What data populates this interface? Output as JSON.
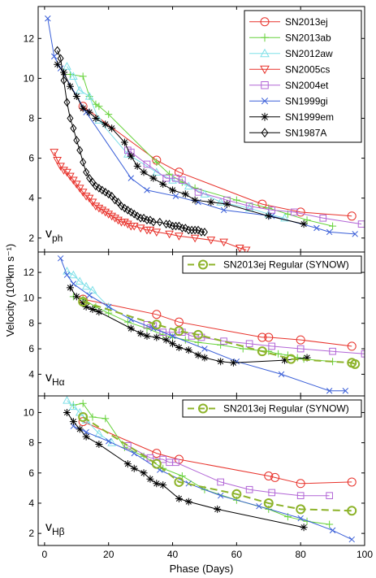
{
  "chart_data": {
    "type": "line",
    "xlabel": "Phase (Days)",
    "ylabel": "Velocity (10³km s⁻¹)",
    "xlim": [
      -2,
      100
    ],
    "xticks": [
      0,
      20,
      40,
      60,
      80,
      100
    ],
    "styles": {
      "SN2013ej": {
        "color": "#e8322b",
        "marker": "circle"
      },
      "SN2013ab": {
        "color": "#66d23a",
        "marker": "plus"
      },
      "SN2012aw": {
        "color": "#7fe0e8",
        "marker": "triangle-up"
      },
      "SN2005cs": {
        "color": "#e8322b",
        "marker": "triangle-down"
      },
      "SN2004et": {
        "color": "#b266d6",
        "marker": "square"
      },
      "SN1999gi": {
        "color": "#3a5fd8",
        "marker": "x"
      },
      "SN1999em": {
        "color": "#000000",
        "marker": "star"
      },
      "SN1987A": {
        "color": "#000000",
        "marker": "diamond"
      },
      "SN2013ej Regular (SYNOW)": {
        "color": "#8db32a",
        "marker": "circle",
        "dashed": true
      }
    },
    "panels": [
      {
        "label_main": "v",
        "label_sub": "ph",
        "ylim": [
          1.3,
          13.6
        ],
        "yticks": [
          2,
          4,
          6,
          8,
          10,
          12
        ],
        "legend_position": "top-right",
        "legend": [
          "SN2013ej",
          "SN2013ab",
          "SN2012aw",
          "SN2005cs",
          "SN2004et",
          "SN1999gi",
          "SN1999em",
          "SN1987A"
        ],
        "series": [
          {
            "name": "SN2013ej",
            "x": [
              12,
              35,
              42,
              68,
              80,
              96
            ],
            "y": [
              8.6,
              5.9,
              5.3,
              3.7,
              3.3,
              3.1
            ]
          },
          {
            "name": "SN2013ab",
            "x": [
              8,
              12,
              14,
              16,
              17,
              20,
              35,
              39,
              43,
              47,
              60,
              70,
              76,
              82,
              90
            ],
            "y": [
              10.2,
              10.1,
              9.1,
              8.7,
              8.6,
              8.2,
              5.8,
              5.2,
              4.8,
              4.5,
              3.9,
              3.5,
              3.2,
              2.9,
              2.6
            ]
          },
          {
            "name": "SN2012aw",
            "x": [
              7,
              9,
              11,
              14,
              17,
              26,
              35,
              40,
              45,
              50,
              55,
              64,
              70,
              75
            ],
            "y": [
              10.6,
              10.1,
              9.4,
              9.1,
              7.9,
              6.2,
              5.3,
              4.9,
              4.6,
              4.2,
              3.8,
              3.5,
              3.2,
              3.0
            ]
          },
          {
            "name": "SN2005cs",
            "x": [
              3,
              4,
              5,
              6,
              7,
              8,
              9,
              10,
              11,
              12,
              13,
              14,
              15,
              16,
              17,
              18,
              19,
              20,
              21,
              22,
              23,
              24,
              25,
              26,
              27,
              28,
              30,
              32,
              33,
              35,
              39,
              42,
              47,
              52,
              56,
              61,
              63
            ],
            "y": [
              6.3,
              5.9,
              5.6,
              5.4,
              5.3,
              5.1,
              4.9,
              4.7,
              4.5,
              4.3,
              4.1,
              4.0,
              3.8,
              3.6,
              3.5,
              3.4,
              3.3,
              3.2,
              3.1,
              3.0,
              2.9,
              2.8,
              2.8,
              2.7,
              2.6,
              2.6,
              2.5,
              2.4,
              2.4,
              2.3,
              2.2,
              2.1,
              2.0,
              1.9,
              1.8,
              1.5,
              1.4
            ]
          },
          {
            "name": "SN2004et",
            "x": [
              26,
              27,
              32,
              38,
              41,
              43,
              48,
              57,
              64,
              71,
              78,
              87,
              99
            ],
            "y": [
              6.4,
              6.3,
              5.7,
              5.0,
              5.0,
              4.9,
              4.3,
              3.9,
              3.6,
              3.4,
              3.3,
              3.0,
              2.7
            ]
          },
          {
            "name": "SN1999gi",
            "x": [
              1,
              3,
              5,
              13,
              27,
              32,
              41,
              48,
              56,
              71,
              85,
              89,
              97
            ],
            "y": [
              13.0,
              11.1,
              10.5,
              8.3,
              5.0,
              4.4,
              4.1,
              3.8,
              3.4,
              3.1,
              2.5,
              2.3,
              2.2
            ]
          },
          {
            "name": "SN1999em",
            "x": [
              4,
              6,
              8,
              10,
              12,
              14,
              16,
              19,
              21,
              25,
              27,
              29,
              31,
              34,
              37,
              40,
              44,
              47,
              52,
              57,
              70,
              81
            ],
            "y": [
              10.7,
              10.3,
              9.6,
              9.1,
              8.5,
              8.3,
              8.0,
              7.7,
              7.5,
              6.8,
              6.1,
              5.6,
              5.3,
              5.0,
              4.7,
              4.4,
              4.2,
              3.9,
              3.8,
              3.7,
              3.1,
              2.7
            ]
          },
          {
            "name": "SN1987A",
            "x": [
              4,
              5,
              6,
              7,
              8,
              9,
              10,
              11,
              12,
              13,
              14,
              15,
              16,
              17,
              18,
              19,
              20,
              21,
              22,
              23,
              24,
              25,
              26,
              27,
              28,
              29,
              30,
              31,
              32,
              33,
              34,
              36,
              38,
              39,
              40,
              41,
              42,
              43,
              44,
              45,
              46,
              47,
              48,
              49,
              50
            ],
            "y": [
              11.4,
              11.0,
              9.9,
              8.8,
              8.0,
              7.5,
              6.9,
              6.4,
              5.8,
              5.3,
              5.0,
              4.8,
              4.6,
              4.5,
              4.4,
              4.3,
              4.2,
              4.1,
              3.9,
              3.8,
              3.6,
              3.5,
              3.4,
              3.3,
              3.2,
              3.1,
              3.0,
              3.0,
              2.9,
              2.9,
              2.8,
              2.8,
              2.7,
              2.7,
              2.6,
              2.6,
              2.6,
              2.5,
              2.5,
              2.4,
              2.4,
              2.4,
              2.4,
              2.3,
              2.3
            ]
          }
        ]
      },
      {
        "label_main": "v",
        "label_sub": "Hα",
        "ylim": [
          2.3,
          13.6
        ],
        "yticks": [
          4,
          6,
          8,
          10,
          12
        ],
        "legend_position": "top-right",
        "legend": [
          "SN2013ej Regular (SYNOW)"
        ],
        "series": [
          {
            "name": "SN2013ej",
            "x": [
              12,
              35,
              42,
              68,
              70,
              80,
              96
            ],
            "y": [
              9.9,
              8.7,
              8.1,
              6.9,
              6.9,
              6.7,
              6.2
            ]
          },
          {
            "name": "SN2013ab",
            "x": [
              9,
              12,
              16,
              20,
              26,
              32,
              37,
              40,
              44,
              48,
              55,
              62,
              70,
              73,
              76,
              79,
              81,
              90
            ],
            "y": [
              10.1,
              9.9,
              9.3,
              8.8,
              8.1,
              7.6,
              7.1,
              6.9,
              6.7,
              6.5,
              6.3,
              6.0,
              5.8,
              5.6,
              5.5,
              5.3,
              5.2,
              5.0
            ]
          },
          {
            "name": "SN2012aw",
            "x": [
              7,
              9,
              11,
              13,
              15,
              20
            ],
            "y": [
              12.1,
              11.8,
              11.3,
              10.9,
              10.6,
              9.3
            ]
          },
          {
            "name": "SN2004et",
            "x": [
              32,
              34,
              37,
              40,
              43,
              46,
              49,
              56,
              64,
              71,
              80,
              90,
              100
            ],
            "y": [
              7.9,
              7.8,
              7.3,
              7.3,
              7.3,
              7.0,
              6.9,
              6.6,
              6.4,
              6.2,
              6.0,
              5.8,
              5.6
            ]
          },
          {
            "name": "SN1999gi",
            "x": [
              5,
              7,
              9,
              14,
              20,
              27,
              34,
              40,
              50,
              60,
              74,
              89,
              94
            ],
            "y": [
              13.1,
              11.8,
              11.1,
              10.2,
              9.3,
              8.3,
              7.6,
              7.0,
              6.0,
              5.0,
              4.0,
              2.7,
              2.7
            ]
          },
          {
            "name": "SN1999em",
            "x": [
              8,
              10,
              12,
              13,
              15,
              17,
              27,
              30,
              32,
              35,
              38,
              40,
              42,
              45,
              48,
              50,
              55,
              59,
              75,
              82
            ],
            "y": [
              10.8,
              10.1,
              9.6,
              9.3,
              9.1,
              8.9,
              7.6,
              7.2,
              7.0,
              6.9,
              6.7,
              6.4,
              6.1,
              5.9,
              5.5,
              5.3,
              5.0,
              4.9,
              5.1,
              5.3
            ]
          },
          {
            "name": "SN2013ej Regular (SYNOW)",
            "x": [
              12,
              35,
              42,
              48,
              68,
              77,
              96,
              97
            ],
            "y": [
              9.7,
              7.9,
              7.4,
              7.1,
              5.8,
              5.2,
              4.9,
              4.8
            ]
          }
        ]
      },
      {
        "label_main": "v",
        "label_sub": "Hβ",
        "ylim": [
          1.2,
          11.1
        ],
        "yticks": [
          2,
          4,
          6,
          8,
          10
        ],
        "legend_position": "top-right",
        "legend": [
          "SN2013ej Regular (SYNOW)"
        ],
        "series": [
          {
            "name": "SN2013ej",
            "x": [
              12,
              35,
              42,
              70,
              72,
              80,
              96
            ],
            "y": [
              9.4,
              7.3,
              6.9,
              5.8,
              5.7,
              5.3,
              5.4
            ]
          },
          {
            "name": "SN2013ab",
            "x": [
              9,
              12,
              15,
              19,
              25,
              31,
              37,
              43,
              50,
              60,
              70,
              76,
              82,
              89
            ],
            "y": [
              10.5,
              10.6,
              9.7,
              9.6,
              7.7,
              7.1,
              6.3,
              5.8,
              4.9,
              4.2,
              3.6,
              3.1,
              2.8,
              2.6
            ]
          },
          {
            "name": "SN2012aw",
            "x": [
              7,
              9,
              11,
              13,
              17,
              21
            ],
            "y": [
              10.8,
              10.4,
              10.0,
              9.5,
              8.6,
              8.0
            ]
          },
          {
            "name": "SN2004et",
            "x": [
              26,
              33,
              37,
              39,
              41,
              55,
              64,
              71,
              80,
              89
            ],
            "y": [
              7.8,
              7.0,
              6.9,
              6.7,
              6.7,
              5.4,
              4.9,
              4.7,
              4.5,
              4.5
            ]
          },
          {
            "name": "SN1999gi",
            "x": [
              9,
              13,
              20,
              28,
              36,
              45,
              55,
              67,
              80,
              90,
              96
            ],
            "y": [
              9.1,
              8.7,
              8.1,
              7.3,
              6.2,
              5.3,
              4.5,
              3.8,
              3.0,
              2.2,
              1.6
            ]
          },
          {
            "name": "SN1999em",
            "x": [
              7,
              9,
              11,
              13,
              17,
              26,
              28,
              31,
              33,
              35,
              37,
              42,
              45,
              54,
              81
            ],
            "y": [
              10.0,
              9.4,
              8.9,
              8.4,
              7.9,
              6.6,
              6.3,
              6.0,
              5.6,
              5.3,
              5.2,
              4.3,
              4.1,
              3.6,
              2.4
            ]
          },
          {
            "name": "SN2013ej Regular (SYNOW)",
            "x": [
              12,
              35,
              42,
              60,
              70,
              80,
              96
            ],
            "y": [
              9.7,
              6.6,
              5.4,
              4.6,
              4.0,
              3.6,
              3.5
            ]
          }
        ]
      }
    ]
  }
}
